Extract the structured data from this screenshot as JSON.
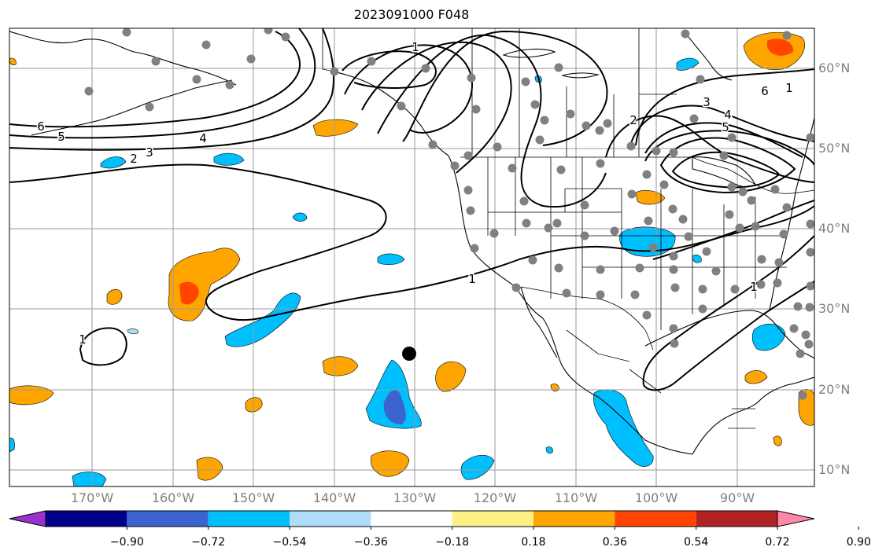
{
  "title": "2023091000 F048",
  "map": {
    "lon_labels": [
      "170°W",
      "160°W",
      "150°W",
      "140°W",
      "130°W",
      "120°W",
      "110°W",
      "100°W",
      "90°W"
    ],
    "lat_labels": [
      "60°N",
      "50°N",
      "40°N",
      "30°N",
      "20°N",
      "10°N"
    ],
    "grid_color": "#999999",
    "land_outline_color": "#000000",
    "contour_labels": [
      "6",
      "5",
      "4",
      "3",
      "2",
      "1",
      "2",
      "3",
      "4",
      "5",
      "6",
      "1",
      "1",
      "1",
      "1"
    ],
    "positive_fill_colors": [
      "#fdf087",
      "#ffa500",
      "#ff4500"
    ],
    "negative_fill_colors": [
      "#afdcf8",
      "#00bfff",
      "#3c64cf"
    ],
    "station_marker_color": "#808080",
    "storm_marker_color": "#000000"
  },
  "colorbar": {
    "ticks": [
      "−0.90",
      "−0.72",
      "−0.54",
      "−0.36",
      "−0.18",
      "0.18",
      "0.36",
      "0.54",
      "0.72",
      "0.90"
    ],
    "colors": [
      "#9932cc",
      "#00008b",
      "#3c64cf",
      "#00bfff",
      "#afdcf8",
      "#ffffff",
      "#fdf087",
      "#ffa500",
      "#ff4500",
      "#b22222",
      "#ff88aa"
    ]
  }
}
